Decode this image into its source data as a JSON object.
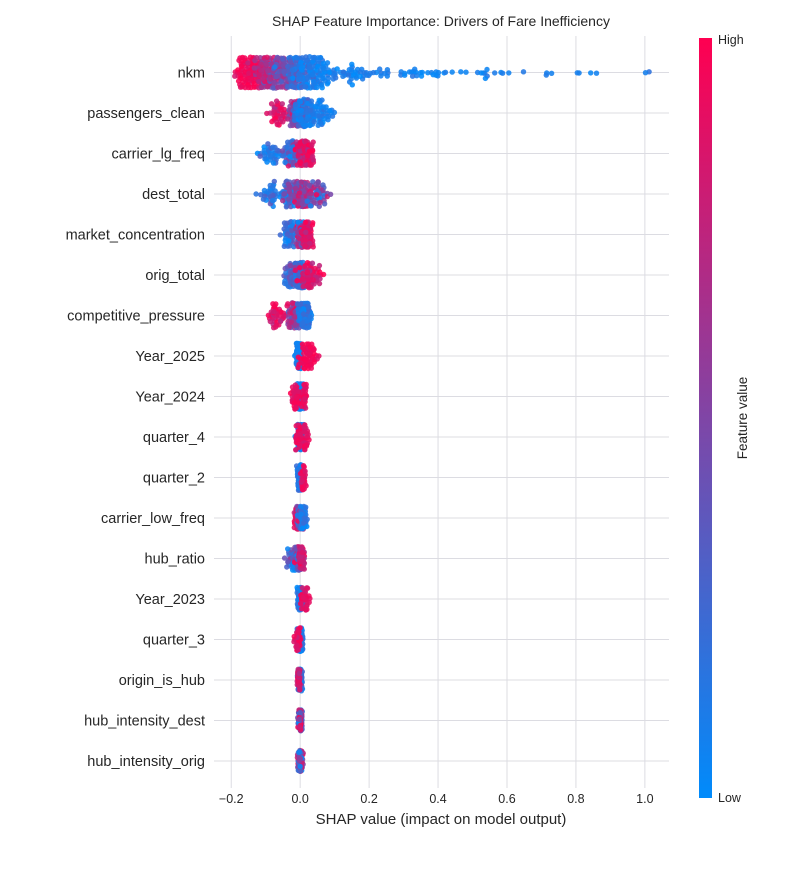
{
  "chart_data": {
    "type": "scatter",
    "subtype": "shap-beeswarm",
    "title": "SHAP Feature Importance: Drivers of Fare Inefficiency",
    "xlabel": "SHAP value (impact on model output)",
    "xticks": [
      -0.2,
      0.0,
      0.2,
      0.4,
      0.6,
      0.8,
      1.0
    ],
    "xtick_labels": [
      "−0.2",
      "0.0",
      "0.2",
      "0.4",
      "0.6",
      "0.8",
      "1.0"
    ],
    "xlim": [
      -0.25,
      1.07
    ],
    "grid": true,
    "legend_position": "right-colorbar",
    "colorbar": {
      "label": "Feature value",
      "high_label": "High",
      "low_label": "Low",
      "high_color": "#ff0051",
      "low_color": "#008bfb"
    },
    "features": [
      {
        "name": "nkm",
        "cap": 15,
        "shap_range": [
          -0.19,
          1.02
        ],
        "clusters": [
          {
            "x": -0.145,
            "s": 0.022,
            "n": 120,
            "v": 0.95,
            "vs": 0.06
          },
          {
            "x": -0.1,
            "s": 0.02,
            "n": 110,
            "v": 0.75,
            "vs": 0.12
          },
          {
            "x": -0.06,
            "s": 0.018,
            "n": 100,
            "v": 0.5,
            "vs": 0.15
          },
          {
            "x": -0.02,
            "s": 0.015,
            "n": 80,
            "v": 0.3,
            "vs": 0.12
          },
          {
            "x": 0.03,
            "s": 0.03,
            "n": 110,
            "v": 0.12,
            "vs": 0.07
          },
          {
            "x": 0.12,
            "s": 0.05,
            "n": 50,
            "v": 0.08,
            "vs": 0.05
          },
          {
            "x": 0.3,
            "s": 0.09,
            "n": 40,
            "v": 0.07,
            "vs": 0.05
          },
          {
            "x": 0.55,
            "s": 0.08,
            "n": 16,
            "v": 0.08,
            "vs": 0.05
          },
          {
            "x": 0.78,
            "s": 0.04,
            "n": 5,
            "v": 0.1,
            "vs": 0.05
          },
          {
            "x": 1.015,
            "s": 0.008,
            "n": 2,
            "v": 0.12,
            "vs": 0.03
          }
        ]
      },
      {
        "name": "passengers_clean",
        "cap": 13,
        "shap_range": [
          -0.09,
          0.1
        ],
        "clusters": [
          {
            "x": -0.055,
            "s": 0.017,
            "n": 40,
            "v": 0.85,
            "vs": 0.1
          },
          {
            "x": -0.015,
            "s": 0.01,
            "n": 70,
            "v": 0.6,
            "vs": 0.2
          },
          {
            "x": 0.01,
            "s": 0.012,
            "n": 130,
            "v": 0.15,
            "vs": 0.1
          },
          {
            "x": 0.05,
            "s": 0.022,
            "n": 60,
            "v": 0.1,
            "vs": 0.06
          }
        ]
      },
      {
        "name": "carrier_lg_freq",
        "cap": 12,
        "shap_range": [
          -0.13,
          0.05
        ],
        "clusters": [
          {
            "x": -0.08,
            "s": 0.02,
            "n": 40,
            "v": 0.12,
            "vs": 0.08
          },
          {
            "x": -0.025,
            "s": 0.012,
            "n": 55,
            "v": 0.35,
            "vs": 0.2
          },
          {
            "x": 0.008,
            "s": 0.01,
            "n": 140,
            "v": 0.85,
            "vs": 0.12
          },
          {
            "x": 0.028,
            "s": 0.008,
            "n": 30,
            "v": 0.9,
            "vs": 0.08
          }
        ]
      },
      {
        "name": "dest_total",
        "cap": 12,
        "shap_range": [
          -0.12,
          0.1
        ],
        "clusters": [
          {
            "x": -0.085,
            "s": 0.018,
            "n": 35,
            "v": 0.15,
            "vs": 0.1
          },
          {
            "x": -0.03,
            "s": 0.015,
            "n": 55,
            "v": 0.35,
            "vs": 0.2
          },
          {
            "x": 0.005,
            "s": 0.01,
            "n": 130,
            "v": 0.6,
            "vs": 0.2
          },
          {
            "x": 0.045,
            "s": 0.022,
            "n": 55,
            "v": 0.45,
            "vs": 0.25
          }
        ]
      },
      {
        "name": "market_concentration",
        "cap": 12,
        "shap_range": [
          -0.06,
          0.05
        ],
        "clusters": [
          {
            "x": -0.03,
            "s": 0.012,
            "n": 55,
            "v": 0.18,
            "vs": 0.12
          },
          {
            "x": 0.0,
            "s": 0.006,
            "n": 70,
            "v": 0.5,
            "vs": 0.25
          },
          {
            "x": 0.02,
            "s": 0.009,
            "n": 110,
            "v": 0.88,
            "vs": 0.08
          }
        ]
      },
      {
        "name": "orig_total",
        "cap": 12,
        "shap_range": [
          -0.07,
          0.1
        ],
        "clusters": [
          {
            "x": -0.025,
            "s": 0.013,
            "n": 50,
            "v": 0.3,
            "vs": 0.18
          },
          {
            "x": 0.0,
            "s": 0.007,
            "n": 110,
            "v": 0.25,
            "vs": 0.15
          },
          {
            "x": 0.03,
            "s": 0.018,
            "n": 75,
            "v": 0.85,
            "vs": 0.12
          }
        ]
      },
      {
        "name": "competitive_pressure",
        "cap": 12,
        "shap_range": [
          -0.1,
          0.05
        ],
        "clusters": [
          {
            "x": -0.07,
            "s": 0.016,
            "n": 40,
            "v": 0.88,
            "vs": 0.1
          },
          {
            "x": -0.015,
            "s": 0.012,
            "n": 90,
            "v": 0.6,
            "vs": 0.22
          },
          {
            "x": 0.015,
            "s": 0.01,
            "n": 100,
            "v": 0.15,
            "vs": 0.1
          }
        ]
      },
      {
        "name": "Year_2025",
        "cap": 12,
        "shap_range": [
          -0.02,
          0.07
        ],
        "clusters": [
          {
            "x": -0.004,
            "s": 0.004,
            "n": 150,
            "v": 0.07,
            "vs": 0.05
          },
          {
            "x": 0.025,
            "s": 0.014,
            "n": 55,
            "v": 0.95,
            "vs": 0.04
          }
        ]
      },
      {
        "name": "Year_2024",
        "cap": 12,
        "shap_range": [
          -0.03,
          0.03
        ],
        "clusters": [
          {
            "x": 0.0,
            "s": 0.004,
            "n": 140,
            "v": 0.08,
            "vs": 0.05
          },
          {
            "x": -0.014,
            "s": 0.006,
            "n": 35,
            "v": 0.92,
            "vs": 0.05
          },
          {
            "x": 0.013,
            "s": 0.005,
            "n": 28,
            "v": 0.92,
            "vs": 0.05
          }
        ]
      },
      {
        "name": "quarter_4",
        "cap": 12,
        "shap_range": [
          -0.02,
          0.03
        ],
        "clusters": [
          {
            "x": 0.0,
            "s": 0.004,
            "n": 140,
            "v": 0.1,
            "vs": 0.06
          },
          {
            "x": -0.008,
            "s": 0.004,
            "n": 25,
            "v": 0.9,
            "vs": 0.06
          },
          {
            "x": 0.014,
            "s": 0.006,
            "n": 32,
            "v": 0.9,
            "vs": 0.06
          }
        ]
      },
      {
        "name": "quarter_2",
        "cap": 12,
        "shap_range": [
          -0.015,
          0.02
        ],
        "clusters": [
          {
            "x": 0.0,
            "s": 0.004,
            "n": 145,
            "v": 0.12,
            "vs": 0.07
          },
          {
            "x": 0.009,
            "s": 0.004,
            "n": 40,
            "v": 0.9,
            "vs": 0.06
          }
        ]
      },
      {
        "name": "carrier_low_freq",
        "cap": 11,
        "shap_range": [
          -0.025,
          0.02
        ],
        "clusters": [
          {
            "x": -0.009,
            "s": 0.005,
            "n": 45,
            "v": 0.88,
            "vs": 0.07
          },
          {
            "x": 0.0,
            "s": 0.004,
            "n": 85,
            "v": 0.45,
            "vs": 0.25
          },
          {
            "x": 0.009,
            "s": 0.005,
            "n": 55,
            "v": 0.12,
            "vs": 0.08
          }
        ]
      },
      {
        "name": "hub_ratio",
        "cap": 11,
        "shap_range": [
          -0.045,
          0.015
        ],
        "clusters": [
          {
            "x": -0.022,
            "s": 0.009,
            "n": 45,
            "v": 0.3,
            "vs": 0.2
          },
          {
            "x": -0.005,
            "s": 0.005,
            "n": 70,
            "v": 0.55,
            "vs": 0.25
          },
          {
            "x": 0.004,
            "s": 0.004,
            "n": 80,
            "v": 0.8,
            "vs": 0.12
          }
        ]
      },
      {
        "name": "Year_2023",
        "cap": 11,
        "shap_range": [
          -0.015,
          0.025
        ],
        "clusters": [
          {
            "x": 0.0,
            "s": 0.004,
            "n": 135,
            "v": 0.12,
            "vs": 0.07
          },
          {
            "x": 0.013,
            "s": 0.006,
            "n": 38,
            "v": 0.9,
            "vs": 0.06
          }
        ]
      },
      {
        "name": "quarter_3",
        "cap": 11,
        "shap_range": [
          -0.02,
          0.015
        ],
        "clusters": [
          {
            "x": 0.0,
            "s": 0.004,
            "n": 135,
            "v": 0.13,
            "vs": 0.07
          },
          {
            "x": -0.008,
            "s": 0.004,
            "n": 38,
            "v": 0.9,
            "vs": 0.06
          }
        ]
      },
      {
        "name": "origin_is_hub",
        "cap": 10,
        "shap_range": [
          -0.012,
          0.01
        ],
        "clusters": [
          {
            "x": 0.0,
            "s": 0.003,
            "n": 110,
            "v": 0.2,
            "vs": 0.15
          },
          {
            "x": -0.004,
            "s": 0.003,
            "n": 45,
            "v": 0.85,
            "vs": 0.1
          }
        ]
      },
      {
        "name": "hub_intensity_dest",
        "cap": 10,
        "shap_range": [
          -0.008,
          0.008
        ],
        "clusters": [
          {
            "x": 0.0,
            "s": 0.003,
            "n": 150,
            "v": 0.5,
            "vs": 0.28
          }
        ]
      },
      {
        "name": "hub_intensity_orig",
        "cap": 10,
        "shap_range": [
          -0.008,
          0.008
        ],
        "clusters": [
          {
            "x": 0.0,
            "s": 0.003,
            "n": 150,
            "v": 0.5,
            "vs": 0.28
          }
        ]
      }
    ]
  }
}
